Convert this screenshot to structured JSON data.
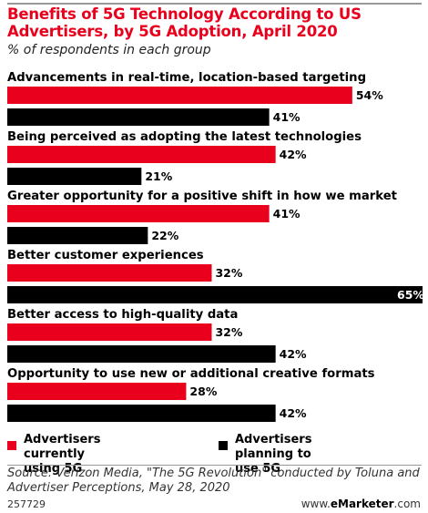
{
  "header": {
    "title": "Benefits of 5G Technology According to US Advertisers, by 5G Adoption, April 2020",
    "subtitle": "% of respondents in each group"
  },
  "colors": {
    "series_current": "#e8001c",
    "series_planning": "#000000"
  },
  "chart_data": {
    "type": "bar",
    "orientation": "horizontal",
    "title": "Benefits of 5G Technology According to US Advertisers, by 5G Adoption, April 2020",
    "subtitle": "% of respondents in each group",
    "categories": [
      "Advancements in real-time, location-based targeting",
      "Being perceived as adopting the latest technologies",
      "Greater opportunity for a positive shift in how we market",
      "Better customer experiences",
      "Better access to high-quality data",
      "Opportunity to use new or additional creative formats"
    ],
    "series": [
      {
        "name": "Advertisers currently using 5G",
        "values": [
          54,
          42,
          41,
          32,
          32,
          28
        ]
      },
      {
        "name": "Advertisers planning to use 5G",
        "values": [
          41,
          21,
          22,
          65,
          42,
          42
        ]
      }
    ],
    "unit": "%",
    "xlim": [
      0,
      65
    ],
    "grid": false,
    "legend": "bottom"
  },
  "legend": {
    "current_line1": "Advertisers currently",
    "current_line2": "using 5G",
    "planning_line1": "Advertisers planning to",
    "planning_line2": "use 5G"
  },
  "footer": {
    "source_line1": "Source: Verizon Media, \"The 5G Revolution\" conducted by Toluna and",
    "source_line2": "Advertiser Perceptions, May 28, 2020",
    "chart_id": "257729",
    "brand_prefix": "www.",
    "brand_name": "eMarketer",
    "brand_suffix": ".com"
  }
}
